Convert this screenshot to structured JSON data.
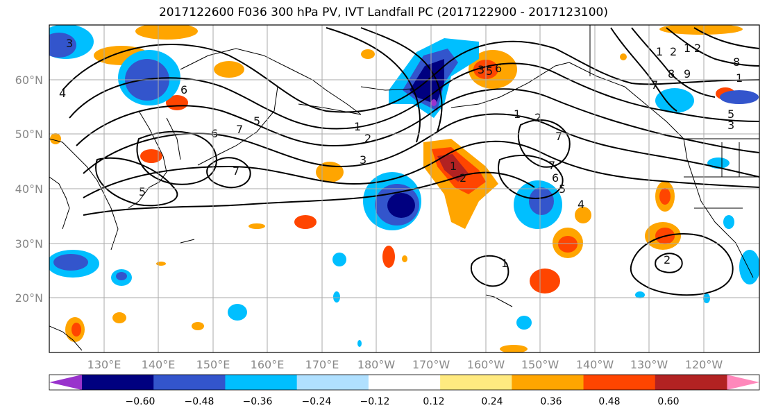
{
  "title": "2017122600 F036 300 hPa PV, IVT Landfall PC (2017122900 - 2017123100)",
  "lat_labels": [
    "60°N",
    "50°N",
    "40°N",
    "30°N",
    "20°N"
  ],
  "lon_labels": [
    "130°E",
    "140°E",
    "150°E",
    "160°E",
    "170°E",
    "180°W",
    "170°W",
    "160°W",
    "150°W",
    "140°W",
    "130°W",
    "120°W"
  ],
  "contour_labels": [
    "3",
    "4",
    "5",
    "6",
    "7",
    "7",
    "6",
    "5",
    "1",
    "2",
    "3",
    "1",
    "2",
    "3",
    "5",
    "6",
    "7",
    "1",
    "2",
    "7",
    "6",
    "5",
    "4",
    "1",
    "2",
    "7",
    "8",
    "9",
    "1",
    "2",
    "1",
    "8",
    "5",
    "3",
    "1",
    "2"
  ],
  "colorbar": {
    "ticks": [
      "−0.60",
      "−0.48",
      "−0.36",
      "−0.24",
      "−0.12",
      "0.12",
      "0.24",
      "0.36",
      "0.48",
      "0.60"
    ],
    "colors": [
      "#9933cc",
      "#000080",
      "#3355cc",
      "#00bfff",
      "#b0e0ff",
      "#ffffff",
      "#ffea80",
      "#ffa500",
      "#ff4500",
      "#b22222",
      "#ff88bb"
    ]
  }
}
